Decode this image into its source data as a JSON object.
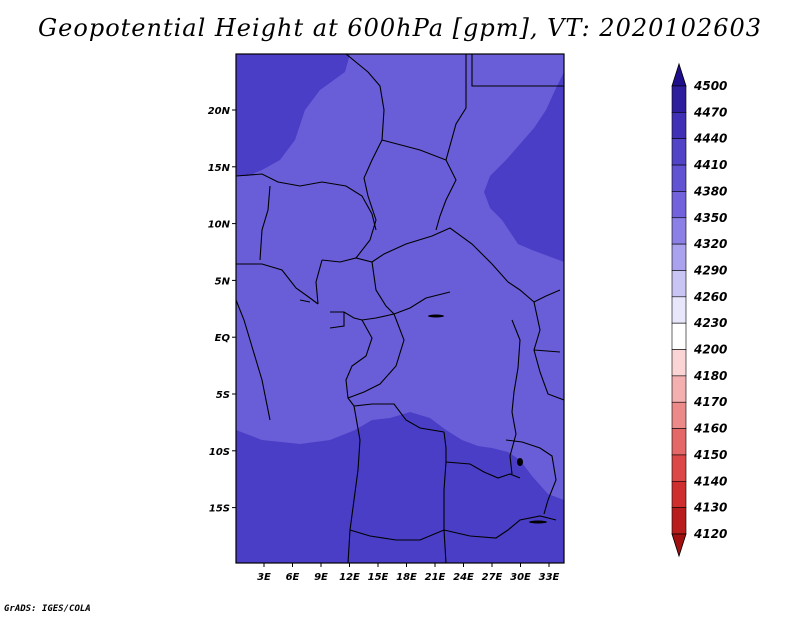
{
  "title": "Geopotential Height at 600hPa [gpm], VT: 2020102603",
  "credit": "GrADS: IGES/COLA",
  "map": {
    "lon_ticks": [
      "3E",
      "6E",
      "9E",
      "12E",
      "15E",
      "18E",
      "21E",
      "24E",
      "27E",
      "30E",
      "33E"
    ],
    "lat_ticks": [
      "20N",
      "15N",
      "10N",
      "5N",
      "EQ",
      "5S",
      "10S",
      "15S"
    ],
    "fill_colors": {
      "level_4410": "#6a5ed8",
      "level_4440": "#4a3ec6"
    }
  },
  "colorbar": {
    "labels": [
      "4500",
      "4470",
      "4440",
      "4410",
      "4380",
      "4350",
      "4320",
      "4290",
      "4260",
      "4230",
      "4200",
      "4180",
      "4170",
      "4160",
      "4150",
      "4140",
      "4130",
      "4120"
    ],
    "colors": [
      "#1f0f8a",
      "#2e1e9e",
      "#3f30b6",
      "#5244c6",
      "#6253d2",
      "#7263dc",
      "#8c80e6",
      "#aaa2ee",
      "#c8c4f4",
      "#e8e6fa",
      "#ffffff",
      "#fbd5d5",
      "#f4b0b0",
      "#ec8a8a",
      "#e46868",
      "#dc4848",
      "#cf2e2e",
      "#b81c1c",
      "#a01010"
    ]
  }
}
